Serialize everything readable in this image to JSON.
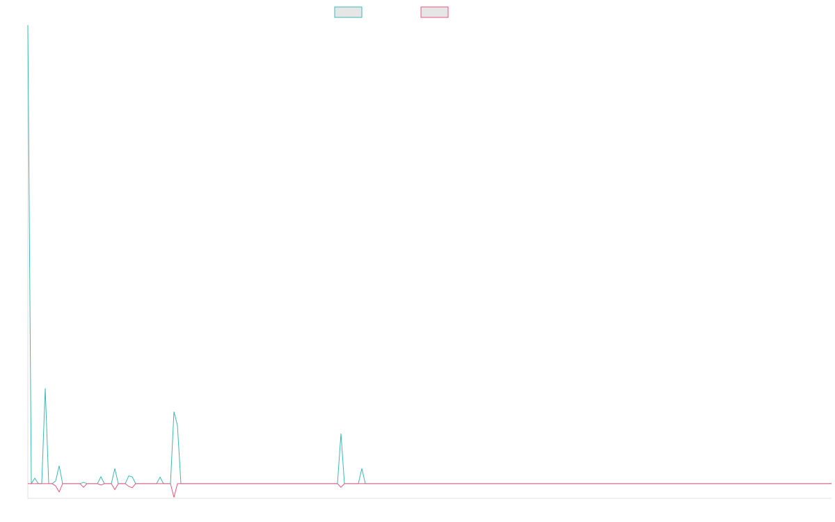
{
  "chart_data": {
    "type": "line",
    "ylim": [
      -3.2,
      100
    ],
    "series": [
      {
        "color": "#3cb8b4",
        "values": [
          100,
          0,
          1.2,
          0,
          0,
          20.8,
          0,
          0,
          0.6,
          3.9,
          0,
          0,
          0,
          0,
          0,
          0,
          0.3,
          0,
          0,
          0,
          0,
          1.5,
          0,
          0,
          0,
          3.3,
          0,
          0,
          0,
          1.7,
          1.5,
          0,
          0,
          0,
          0,
          0,
          0,
          0,
          1.4,
          0,
          0,
          0,
          15.7,
          12.7,
          0,
          0,
          0,
          0,
          0,
          0,
          0,
          0,
          0,
          0,
          0,
          0,
          0,
          0,
          0,
          0,
          0,
          0,
          0,
          0,
          0,
          0,
          0,
          0,
          0,
          0,
          0,
          0,
          0,
          0,
          0,
          0,
          0,
          0,
          0,
          0,
          0,
          0,
          0,
          0,
          0,
          0,
          0,
          0,
          0,
          0,
          10.9,
          0,
          0,
          0,
          0,
          0,
          3.3,
          0,
          0,
          0,
          0,
          0,
          0,
          0,
          0,
          0,
          0,
          0,
          0,
          0,
          0,
          0,
          0,
          0,
          0,
          0,
          0,
          0,
          0,
          0,
          0,
          0,
          0,
          0,
          0,
          0,
          0,
          0,
          0,
          0,
          0,
          0,
          0,
          0,
          0,
          0,
          0,
          0,
          0,
          0,
          0,
          0,
          0,
          0,
          0,
          0,
          0,
          0,
          0,
          0,
          0,
          0,
          0,
          0,
          0,
          0,
          0,
          0,
          0,
          0,
          0,
          0,
          0,
          0,
          0,
          0,
          0,
          0,
          0,
          0,
          0,
          0,
          0,
          0,
          0,
          0,
          0,
          0,
          0,
          0,
          0,
          0,
          0,
          0,
          0,
          0,
          0,
          0,
          0,
          0,
          0,
          0,
          0,
          0,
          0,
          0,
          0,
          0,
          0,
          0,
          0,
          0,
          0,
          0,
          0,
          0,
          0,
          0,
          0,
          0,
          0,
          0,
          0,
          0,
          0,
          0,
          0,
          0,
          0,
          0,
          0,
          0,
          0,
          0,
          0,
          0,
          0,
          0,
          0,
          0,
          0,
          0
        ]
      },
      {
        "color": "#e8557a",
        "values": [
          0,
          0,
          0,
          0,
          0,
          0,
          0,
          0,
          -0.5,
          -1.8,
          0,
          0,
          0,
          0,
          0,
          0,
          -0.8,
          0,
          0,
          0,
          0,
          -0.3,
          0,
          0,
          0,
          -1.3,
          0,
          0,
          0,
          -0.6,
          -0.9,
          0,
          0,
          0,
          0,
          0,
          0,
          0,
          0,
          0,
          0,
          0,
          -3.0,
          0,
          0,
          0,
          0,
          0,
          0,
          0,
          0,
          0,
          0,
          0,
          0,
          0,
          0,
          0,
          0,
          0,
          0,
          0,
          0,
          0,
          0,
          0,
          0,
          0,
          0,
          0,
          0,
          0,
          0,
          0,
          0,
          0,
          0,
          0,
          0,
          0,
          0,
          0,
          0,
          0,
          0,
          0,
          0,
          0,
          0,
          0,
          -0.8,
          0,
          0,
          0,
          0,
          0,
          0,
          0,
          0,
          0,
          0,
          0,
          0,
          0,
          0,
          0,
          0,
          0,
          0,
          0,
          0,
          0,
          0,
          0,
          0,
          0,
          0,
          0,
          0,
          0,
          0,
          0,
          0,
          0,
          0,
          0,
          0,
          0,
          0,
          0,
          0,
          0,
          0,
          0,
          0,
          0,
          0,
          0,
          0,
          0,
          0,
          0,
          0,
          0,
          0,
          0,
          0,
          0,
          0,
          0,
          0,
          0,
          0,
          0,
          0,
          0,
          0,
          0,
          0,
          0,
          0,
          0,
          0,
          0,
          0,
          0,
          0,
          0,
          0,
          0,
          0,
          0,
          0,
          0,
          0,
          0,
          0,
          0,
          0,
          0,
          0,
          0,
          0,
          0,
          0,
          0,
          0,
          0,
          0,
          0,
          0,
          0,
          0,
          0,
          0,
          0,
          0,
          0,
          0,
          0,
          0,
          0,
          0,
          0,
          0,
          0,
          0,
          0,
          0,
          0,
          0,
          0,
          0,
          0,
          0,
          0,
          0,
          0,
          0,
          0,
          0,
          0,
          0,
          0,
          0,
          0,
          0,
          0,
          0,
          0,
          0,
          0
        ]
      }
    ]
  }
}
